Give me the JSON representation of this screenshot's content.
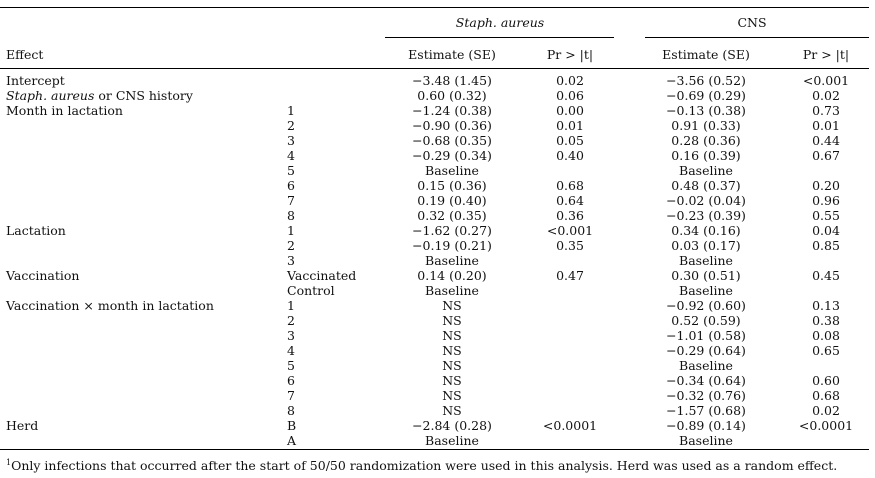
{
  "table": {
    "header": {
      "group_staph": "Staph. aureus",
      "group_cns": "CNS",
      "effect_label": "Effect",
      "estimate_label": "Estimate (SE)",
      "p_label": "Pr > |t|"
    },
    "rows": [
      {
        "effect": "Intercept",
        "level": "",
        "s_est": "−3.48 (1.45)",
        "s_p": "0.02",
        "c_est": "−3.56 (0.52)",
        "c_p": "<0.001"
      },
      {
        "effect": "CNS history",
        "effect_italic": "Staph. aureus",
        "effect_sep": " or ",
        "level": "",
        "s_est": "0.60 (0.32)",
        "s_p": "0.06",
        "c_est": "−0.69 (0.29)",
        "c_p": "0.02"
      },
      {
        "effect": "Month in lactation",
        "level": "1",
        "s_est": "−1.24 (0.38)",
        "s_p": "0.00",
        "c_est": "−0.13 (0.38)",
        "c_p": "0.73"
      },
      {
        "effect": "",
        "level": "2",
        "s_est": "−0.90 (0.36)",
        "s_p": "0.01",
        "c_est": "0.91 (0.33)",
        "c_p": "0.01"
      },
      {
        "effect": "",
        "level": "3",
        "s_est": "−0.68 (0.35)",
        "s_p": "0.05",
        "c_est": "0.28 (0.36)",
        "c_p": "0.44"
      },
      {
        "effect": "",
        "level": "4",
        "s_est": "−0.29 (0.34)",
        "s_p": "0.40",
        "c_est": "0.16 (0.39)",
        "c_p": "0.67"
      },
      {
        "effect": "",
        "level": "5",
        "s_est": "Baseline",
        "s_p": "",
        "c_est": "Baseline",
        "c_p": ""
      },
      {
        "effect": "",
        "level": "6",
        "s_est": "0.15 (0.36)",
        "s_p": "0.68",
        "c_est": "0.48 (0.37)",
        "c_p": "0.20"
      },
      {
        "effect": "",
        "level": "7",
        "s_est": "0.19 (0.40)",
        "s_p": "0.64",
        "c_est": "−0.02 (0.04)",
        "c_p": "0.96"
      },
      {
        "effect": "",
        "level": "8",
        "s_est": "0.32 (0.35)",
        "s_p": "0.36",
        "c_est": "−0.23 (0.39)",
        "c_p": "0.55"
      },
      {
        "effect": "Lactation",
        "level": "1",
        "s_est": "−1.62 (0.27)",
        "s_p": "<0.001",
        "c_est": "0.34 (0.16)",
        "c_p": "0.04"
      },
      {
        "effect": "",
        "level": "2",
        "s_est": "−0.19 (0.21)",
        "s_p": "0.35",
        "c_est": "0.03 (0.17)",
        "c_p": "0.85"
      },
      {
        "effect": "",
        "level": "3",
        "s_est": "Baseline",
        "s_p": "",
        "c_est": "Baseline",
        "c_p": ""
      },
      {
        "effect": "Vaccination",
        "level": "Vaccinated",
        "s_est": "0.14 (0.20)",
        "s_p": "0.47",
        "c_est": "0.30 (0.51)",
        "c_p": "0.45"
      },
      {
        "effect": "",
        "level": "Control",
        "s_est": "Baseline",
        "s_p": "",
        "c_est": "Baseline",
        "c_p": ""
      },
      {
        "effect": "Vaccination × month in lactation",
        "level": "1",
        "s_est": "NS",
        "s_p": "",
        "c_est": "−0.92 (0.60)",
        "c_p": "0.13"
      },
      {
        "effect": "",
        "level": "2",
        "s_est": "NS",
        "s_p": "",
        "c_est": "0.52 (0.59)",
        "c_p": "0.38"
      },
      {
        "effect": "",
        "level": "3",
        "s_est": "NS",
        "s_p": "",
        "c_est": "−1.01 (0.58)",
        "c_p": "0.08"
      },
      {
        "effect": "",
        "level": "4",
        "s_est": "NS",
        "s_p": "",
        "c_est": "−0.29 (0.64)",
        "c_p": "0.65"
      },
      {
        "effect": "",
        "level": "5",
        "s_est": "NS",
        "s_p": "",
        "c_est": "Baseline",
        "c_p": ""
      },
      {
        "effect": "",
        "level": "6",
        "s_est": "NS",
        "s_p": "",
        "c_est": "−0.34 (0.64)",
        "c_p": "0.60"
      },
      {
        "effect": "",
        "level": "7",
        "s_est": "NS",
        "s_p": "",
        "c_est": "−0.32 (0.76)",
        "c_p": "0.68"
      },
      {
        "effect": "",
        "level": "8",
        "s_est": "NS",
        "s_p": "",
        "c_est": "−1.57 (0.68)",
        "c_p": "0.02"
      },
      {
        "effect": "Herd",
        "level": "B",
        "s_est": "−2.84 (0.28)",
        "s_p": "<0.0001",
        "c_est": "−0.89 (0.14)",
        "c_p": "<0.0001"
      },
      {
        "effect": "",
        "level": "A",
        "s_est": "Baseline",
        "s_p": "",
        "c_est": "Baseline",
        "c_p": ""
      }
    ]
  },
  "footnote": {
    "marker": "1",
    "text": "Only infections that occurred after the start of 50/50 randomization were used in this analysis. Herd was used as a random effect."
  }
}
